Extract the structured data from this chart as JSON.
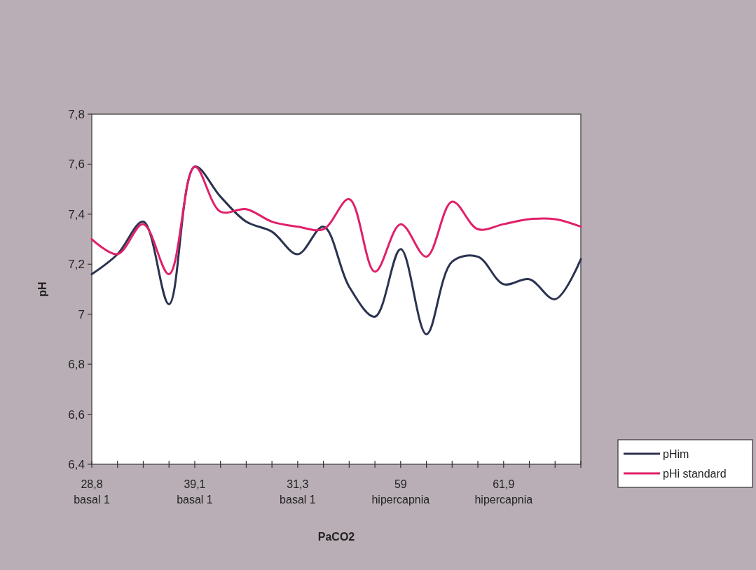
{
  "chart_data": {
    "type": "line",
    "xlabel": "PaCO2",
    "ylabel": "pH",
    "categories": [
      "28,8\nbasal 1",
      null,
      null,
      null,
      "39,1\nbasal 1",
      null,
      null,
      null,
      "31,3\nbasal 1",
      null,
      null,
      null,
      "59\nhipercapnia",
      null,
      null,
      null,
      "61,9\nhipercapnia",
      null,
      null,
      null
    ],
    "series": [
      {
        "name": "pHim",
        "color": "#2b3350",
        "values": [
          7.16,
          7.24,
          7.37,
          7.04,
          7.59,
          7.47,
          7.37,
          7.33,
          7.24,
          7.35,
          7.11,
          6.99,
          7.26,
          6.92,
          7.21,
          7.23,
          7.12,
          7.14,
          7.06,
          7.22
        ]
      },
      {
        "name": "pHi standard",
        "color": "#e0206a",
        "values": [
          7.3,
          7.24,
          7.36,
          7.16,
          7.59,
          7.41,
          7.42,
          7.37,
          7.35,
          7.34,
          7.46,
          7.17,
          7.36,
          7.23,
          7.45,
          7.34,
          7.36,
          7.38,
          7.38,
          7.35
        ]
      }
    ],
    "ylim": [
      6.4,
      7.8
    ],
    "yticks": [
      {
        "value": 6.4,
        "label": "6,4"
      },
      {
        "value": 6.6,
        "label": "6,6"
      },
      {
        "value": 6.8,
        "label": "6,8"
      },
      7,
      {
        "value": 7.2,
        "label": "7,2"
      },
      {
        "value": 7.4,
        "label": "7,4"
      },
      {
        "value": 7.6,
        "label": "7,6"
      },
      {
        "value": 7.8,
        "label": "7,8"
      }
    ],
    "legend": "right",
    "grid": false,
    "marker": "none",
    "line_style": "solid"
  }
}
